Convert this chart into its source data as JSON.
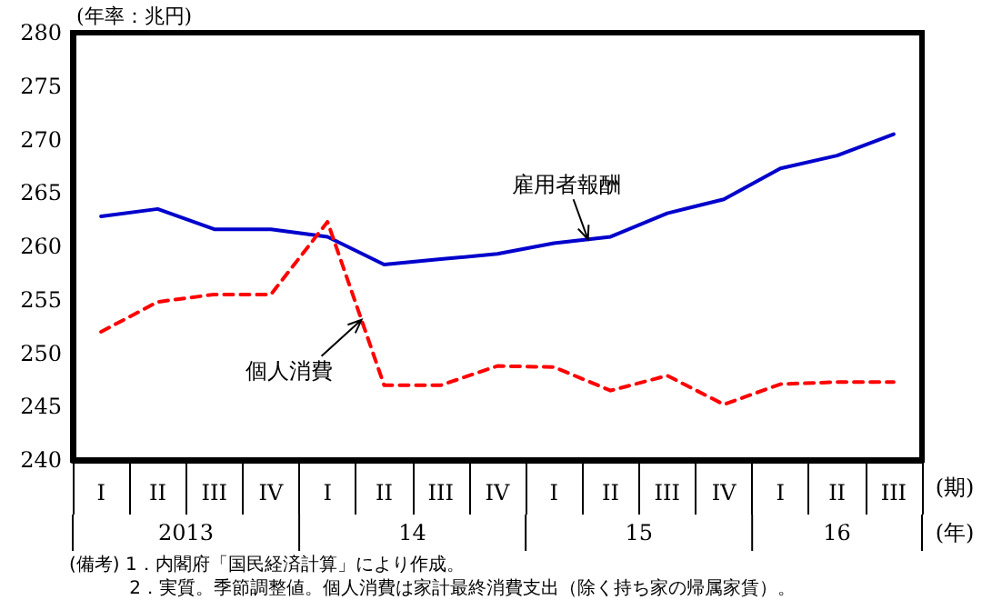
{
  "chart_data": {
    "type": "line",
    "ylabel": "(年率：兆円)",
    "xlabel": "(期)",
    "categories": [
      "I",
      "II",
      "III",
      "IV",
      "I",
      "II",
      "III",
      "IV",
      "I",
      "II",
      "III",
      "IV",
      "I",
      "II",
      "III"
    ],
    "series": [
      {
        "name": "雇用者報酬",
        "color": "#0000cc",
        "line_style": "solid",
        "values": [
          262.8,
          263.5,
          261.6,
          261.6,
          260.9,
          258.3,
          258.8,
          259.3,
          260.3,
          260.9,
          263.1,
          264.4,
          267.3,
          268.5,
          270.5
        ]
      },
      {
        "name": "個人消費",
        "color": "#ff0000",
        "line_style": "dashed",
        "values": [
          252.0,
          254.8,
          255.5,
          255.5,
          262.3,
          247.0,
          247.0,
          248.8,
          248.7,
          246.5,
          247.9,
          245.2,
          247.1,
          247.3,
          247.3
        ]
      }
    ],
    "ylim": [
      240,
      280
    ],
    "yticks": [
      240,
      245,
      250,
      255,
      260,
      265,
      270,
      275,
      280
    ],
    "grid": false,
    "legend": false,
    "marker": "none",
    "annotations": [
      "2013",
      "14",
      "15",
      "16",
      "(年)",
      "(備考) 1．内閣府「国民経済計算」により作成。",
      "　　　 2．実質。季節調整値。個人消費は家計最終消費支出（除く持ち家の帰属家賃）。"
    ]
  }
}
